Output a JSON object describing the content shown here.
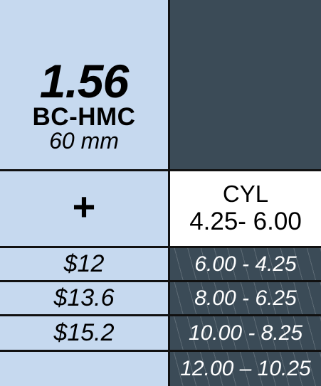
{
  "lens": {
    "index": "1.56",
    "coating": "BC-HMC",
    "diameter": "60 mm"
  },
  "sign": "+",
  "cyl_header": {
    "label": "CYL",
    "range": "4.25- 6.00"
  },
  "rows": [
    {
      "price": "$12",
      "range": "6.00 - 4.25"
    },
    {
      "price": "$13.6",
      "range": "8.00 - 6.25"
    },
    {
      "price": "$15.2",
      "range": "10.00 - 8.25"
    },
    {
      "price": "",
      "range": "12.00 – 10.25"
    }
  ],
  "colors": {
    "light": "#c6d9ef",
    "dark": "#3b4b57",
    "border": "#111111"
  }
}
